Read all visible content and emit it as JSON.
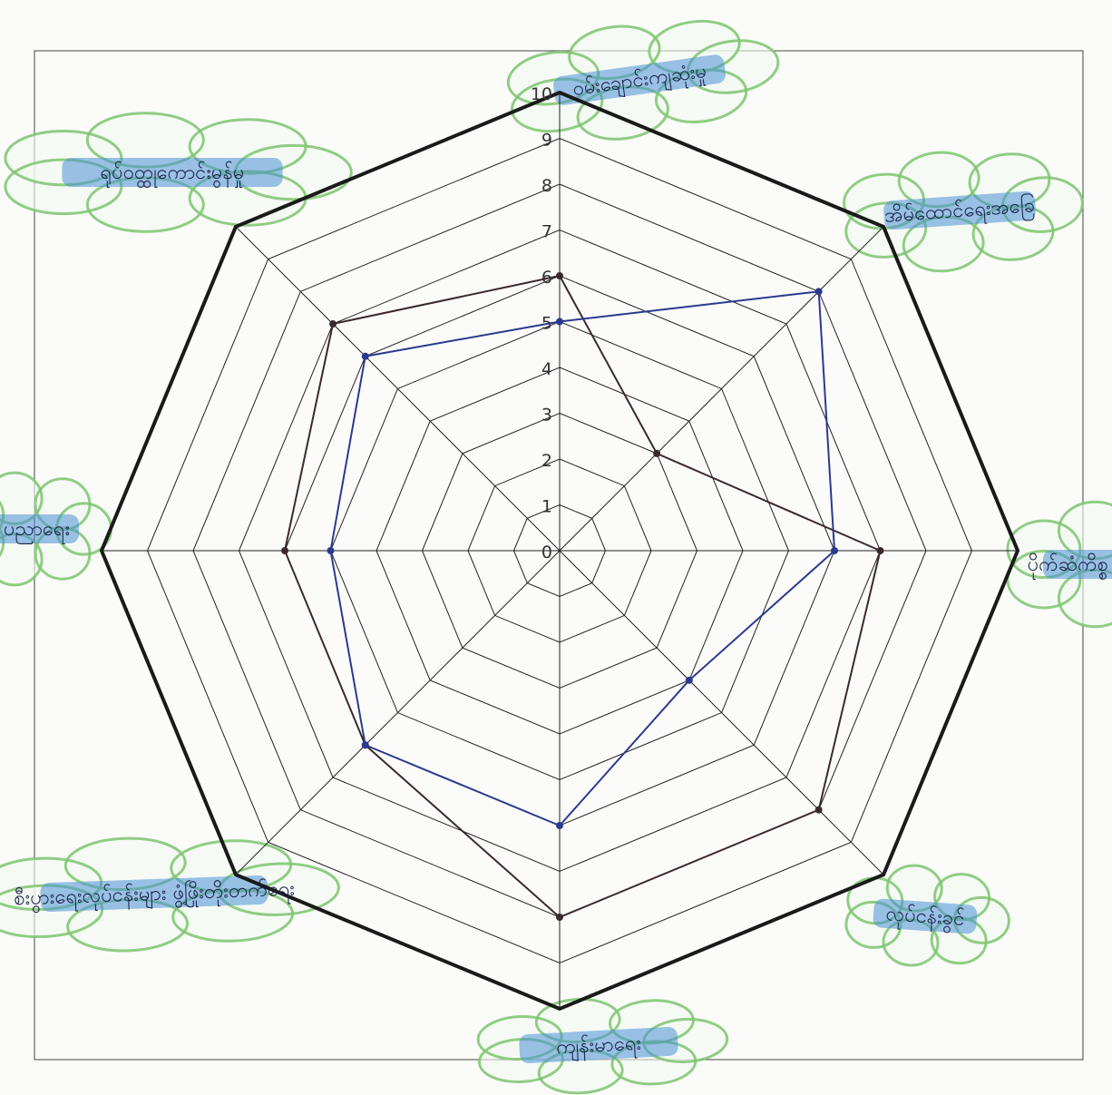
{
  "chart_data": {
    "type": "radar",
    "title": "",
    "axes": [
      "ဝမ်းချောင်းကျဆုံးမှု",
      "အိမ်ထောင်ရေးအခြေ",
      "ပိုက်ဆံကိစ္စ",
      "လုပ်ငန်းခွင်",
      "ကျန်းမာရေး",
      "စီးပွားရေးလုပ်ငန်းများ ဖွံ့ဖြိုးတိုးတက်ရေး",
      "ပညာရေး",
      "ရုပ်ဝတ္ထုကောင်းမွန်မှု"
    ],
    "rlim": [
      0,
      10
    ],
    "ticks": [
      "0",
      "1",
      "2",
      "3",
      "4",
      "5",
      "6",
      "7",
      "8",
      "9",
      "10"
    ],
    "grid": true,
    "series": [
      {
        "color": "#3a2a30",
        "values": [
          6,
          3,
          7,
          8,
          8,
          6,
          6,
          7
        ]
      },
      {
        "color": "#2b3a8f",
        "values": [
          5,
          8,
          6,
          4,
          6,
          6,
          5,
          6
        ]
      }
    ]
  }
}
